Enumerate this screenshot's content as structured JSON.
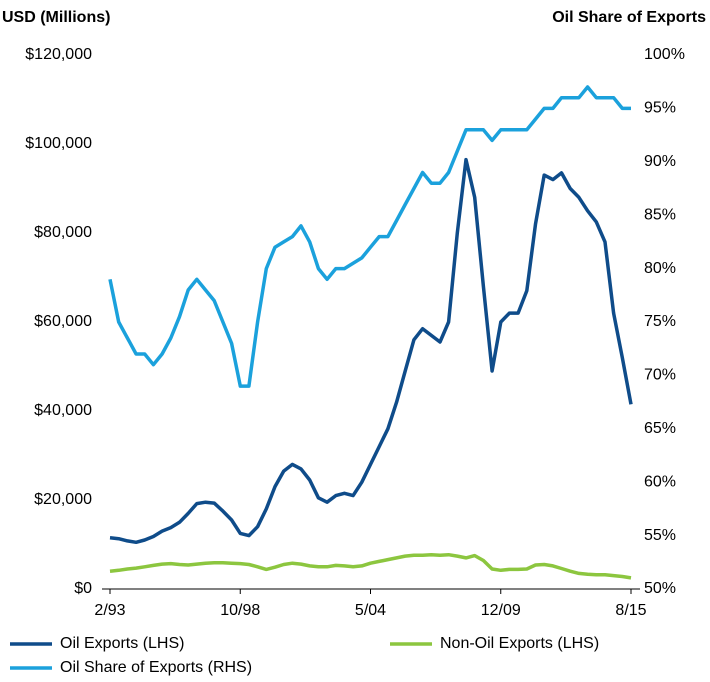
{
  "chart_data": {
    "type": "line",
    "y_label": "USD (Millions)",
    "y2_label": "Oil Share of Exports",
    "categories": [
      "2/93",
      null,
      null,
      null,
      null,
      null,
      null,
      null,
      null,
      null,
      null,
      null,
      null,
      null,
      null,
      "10/98",
      null,
      null,
      null,
      null,
      null,
      null,
      null,
      null,
      null,
      null,
      null,
      null,
      null,
      null,
      "5/04",
      null,
      null,
      null,
      null,
      null,
      null,
      null,
      null,
      null,
      null,
      null,
      null,
      null,
      null,
      "12/09",
      null,
      null,
      null,
      null,
      null,
      null,
      null,
      null,
      null,
      null,
      null,
      null,
      null,
      null,
      "8/15"
    ],
    "series": [
      {
        "name": "Oil Exports (LHS)",
        "color": "#0f4c8a",
        "axis": "y",
        "values": [
          11500,
          11300,
          10800,
          10500,
          11000,
          11800,
          13000,
          13800,
          15000,
          17000,
          19200,
          19500,
          19300,
          17500,
          15500,
          12500,
          12000,
          14000,
          18000,
          23000,
          26500,
          28000,
          27000,
          24500,
          20500,
          19500,
          21000,
          21500,
          21000,
          24000,
          28000,
          32000,
          36000,
          42000,
          49000,
          56000,
          58500,
          57000,
          55500,
          60000,
          80000,
          96500,
          88000,
          68000,
          49000,
          60000,
          62000,
          62000,
          67000,
          82000,
          93000,
          92000,
          93500,
          90000,
          88000,
          85000,
          82500,
          78000,
          62000,
          52000,
          41500
        ]
      },
      {
        "name": "Non-Oil Exports (LHS)",
        "color": "#8cc63f",
        "axis": "y",
        "values": [
          4000,
          4200,
          4500,
          4700,
          5000,
          5300,
          5600,
          5700,
          5500,
          5400,
          5600,
          5800,
          5900,
          5900,
          5800,
          5700,
          5500,
          5000,
          4400,
          4900,
          5500,
          5800,
          5600,
          5200,
          5000,
          5000,
          5300,
          5200,
          5000,
          5200,
          5800,
          6200,
          6600,
          7000,
          7400,
          7600,
          7600,
          7700,
          7600,
          7700,
          7400,
          7000,
          7500,
          6400,
          4500,
          4200,
          4400,
          4400,
          4500,
          5400,
          5500,
          5200,
          4600,
          4000,
          3500,
          3300,
          3200,
          3200,
          3000,
          2800,
          2500
        ]
      },
      {
        "name": "Oil Share of Exports (RHS)",
        "color": "#1ba1dc",
        "axis": "y2",
        "values": [
          79,
          75,
          73.5,
          72,
          72,
          71,
          72,
          73.5,
          75.5,
          78,
          79,
          78,
          77,
          75,
          73,
          69,
          69,
          75,
          80,
          82,
          82.5,
          83,
          84,
          82.5,
          80,
          79,
          80,
          80,
          80.5,
          81,
          82,
          83,
          83,
          84.5,
          86,
          87.5,
          89,
          88,
          88,
          89,
          91,
          93,
          93,
          93,
          92,
          93,
          93,
          93,
          93,
          94,
          95,
          95,
          96,
          96,
          96,
          97,
          96,
          96,
          96,
          95,
          95
        ]
      }
    ],
    "ylim": [
      0,
      120000
    ],
    "yticks": [
      {
        "value": 0,
        "label": "$0"
      },
      {
        "value": 20000,
        "label": "$20,000"
      },
      {
        "value": 40000,
        "label": "$40,000"
      },
      {
        "value": 60000,
        "label": "$60,000"
      },
      {
        "value": 80000,
        "label": "$80,000"
      },
      {
        "value": 100000,
        "label": "$100,000"
      },
      {
        "value": 120000,
        "label": "$120,000"
      }
    ],
    "y2lim": [
      50,
      100
    ],
    "y2ticks": [
      {
        "value": 50,
        "label": "50%"
      },
      {
        "value": 55,
        "label": "55%"
      },
      {
        "value": 60,
        "label": "60%"
      },
      {
        "value": 65,
        "label": "65%"
      },
      {
        "value": 70,
        "label": "70%"
      },
      {
        "value": 75,
        "label": "75%"
      },
      {
        "value": 80,
        "label": "80%"
      },
      {
        "value": 85,
        "label": "85%"
      },
      {
        "value": 90,
        "label": "90%"
      },
      {
        "value": 95,
        "label": "95%"
      },
      {
        "value": 100,
        "label": "100%"
      }
    ],
    "grid": false,
    "legend": "bottom"
  }
}
